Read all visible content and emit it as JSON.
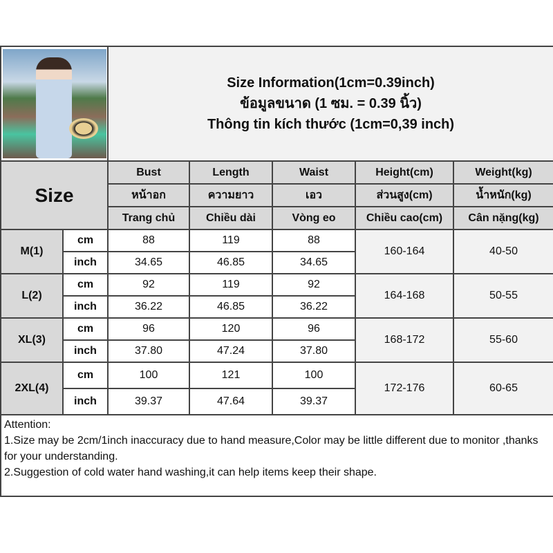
{
  "title_lines": [
    "Size Information(1cm=0.39inch)",
    "ข้อมูลขนาด (1 ซม. = 0.39 นิ้ว)",
    "Thông tin kích thước (1cm=0,39 inch)"
  ],
  "size_label": "Size",
  "headers": [
    {
      "en": "Bust",
      "th": "หน้าอก",
      "vi": "Trang chủ"
    },
    {
      "en": "Length",
      "th": "ความยาว",
      "vi": "Chiều dài"
    },
    {
      "en": "Waist",
      "th": "เอว",
      "vi": "Vòng eo"
    },
    {
      "en": "Height(cm)",
      "th": "ส่วนสูง(cm)",
      "vi": "Chiều cao(cm)"
    },
    {
      "en": "Weight(kg)",
      "th": "น้ำหนัก(kg)",
      "vi": "Cân nặng(kg)"
    }
  ],
  "rows": [
    {
      "size": "M(1)",
      "cm": {
        "unit": "cm",
        "bust": "88",
        "length": "119",
        "waist": "88"
      },
      "inch": {
        "unit": "inch",
        "bust": "34.65",
        "length": "46.85",
        "waist": "34.65"
      },
      "height": "160-164",
      "weight": "40-50"
    },
    {
      "size": "L(2)",
      "cm": {
        "unit": "cm",
        "bust": "92",
        "length": "119",
        "waist": "92"
      },
      "inch": {
        "unit": "inch",
        "bust": "36.22",
        "length": "46.85",
        "waist": "36.22"
      },
      "height": "164-168",
      "weight": "50-55"
    },
    {
      "size": "XL(3)",
      "cm": {
        "unit": "cm",
        "bust": "96",
        "length": "120",
        "waist": "96"
      },
      "inch": {
        "unit": "inch",
        "bust": "37.80",
        "length": "47.24",
        "waist": "37.80"
      },
      "height": "168-172",
      "weight": "55-60"
    },
    {
      "size": "2XL(4)",
      "cm": {
        "unit": "cm",
        "bust": "100",
        "length": "121",
        "waist": "100"
      },
      "inch": {
        "unit": "inch",
        "bust": "39.37",
        "length": "47.64",
        "waist": "39.37"
      },
      "height": "172-176",
      "weight": "60-65"
    }
  ],
  "attention": {
    "heading": "Attention:",
    "notes": [
      "1.Size may be 2cm/1inch inaccuracy due to hand measure,Color may be little different due to monitor ,thanks for your understanding.",
      "2.Suggestion of cold water hand washing,it can help items keep their shape."
    ]
  }
}
